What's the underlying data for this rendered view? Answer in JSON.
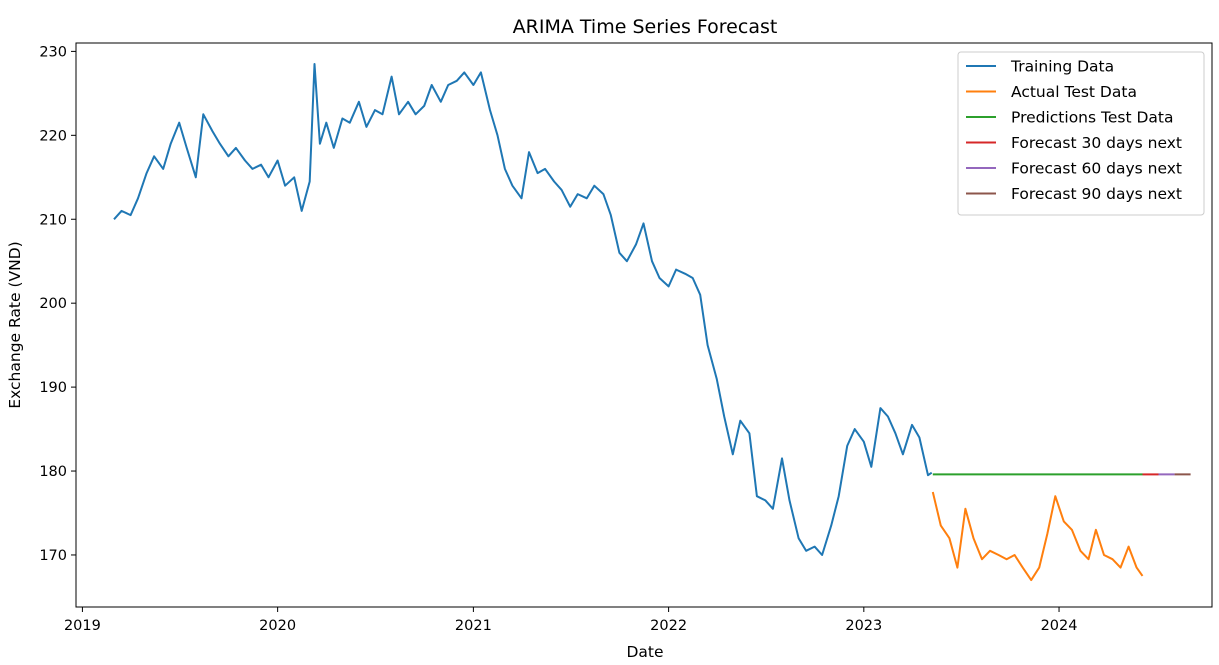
{
  "chart_data": {
    "type": "line",
    "title": "ARIMA Time Series Forecast",
    "xlabel": "Date",
    "ylabel": "Exchange Rate (VND)",
    "x_ticks": [
      "2019",
      "2020",
      "2021",
      "2022",
      "2023",
      "2024"
    ],
    "y_ticks": [
      170,
      180,
      190,
      200,
      210,
      220,
      230
    ],
    "xlim": [
      "2018-12-20",
      "2024-10-13"
    ],
    "ylim": [
      163.8,
      231.0
    ],
    "grid": false,
    "legend_position": "top-right",
    "series": [
      {
        "name": "Training Data",
        "color": "#1f77b4",
        "points": [
          [
            "2019-03-01",
            210.0
          ],
          [
            "2019-03-15",
            211.0
          ],
          [
            "2019-04-01",
            210.5
          ],
          [
            "2019-04-15",
            212.5
          ],
          [
            "2019-05-01",
            215.5
          ],
          [
            "2019-05-15",
            217.5
          ],
          [
            "2019-06-01",
            216.0
          ],
          [
            "2019-06-15",
            219.0
          ],
          [
            "2019-07-01",
            221.5
          ],
          [
            "2019-07-15",
            218.5
          ],
          [
            "2019-08-01",
            215.0
          ],
          [
            "2019-08-15",
            222.5
          ],
          [
            "2019-09-01",
            220.5
          ],
          [
            "2019-09-15",
            219.0
          ],
          [
            "2019-10-01",
            217.5
          ],
          [
            "2019-10-15",
            218.5
          ],
          [
            "2019-11-01",
            217.0
          ],
          [
            "2019-11-15",
            216.0
          ],
          [
            "2019-12-01",
            216.5
          ],
          [
            "2019-12-15",
            215.0
          ],
          [
            "2020-01-01",
            217.0
          ],
          [
            "2020-01-15",
            214.0
          ],
          [
            "2020-02-01",
            215.0
          ],
          [
            "2020-02-15",
            211.0
          ],
          [
            "2020-03-01",
            214.5
          ],
          [
            "2020-03-10",
            228.5
          ],
          [
            "2020-03-20",
            219.0
          ],
          [
            "2020-04-01",
            221.5
          ],
          [
            "2020-04-15",
            218.5
          ],
          [
            "2020-05-01",
            222.0
          ],
          [
            "2020-05-15",
            221.5
          ],
          [
            "2020-06-01",
            224.0
          ],
          [
            "2020-06-15",
            221.0
          ],
          [
            "2020-07-01",
            223.0
          ],
          [
            "2020-07-15",
            222.5
          ],
          [
            "2020-08-01",
            227.0
          ],
          [
            "2020-08-15",
            222.5
          ],
          [
            "2020-09-01",
            224.0
          ],
          [
            "2020-09-15",
            222.5
          ],
          [
            "2020-10-01",
            223.5
          ],
          [
            "2020-10-15",
            226.0
          ],
          [
            "2020-11-01",
            224.0
          ],
          [
            "2020-11-15",
            226.0
          ],
          [
            "2020-12-01",
            226.5
          ],
          [
            "2020-12-15",
            227.5
          ],
          [
            "2021-01-01",
            226.0
          ],
          [
            "2021-01-15",
            227.5
          ],
          [
            "2021-02-01",
            223.0
          ],
          [
            "2021-02-15",
            220.0
          ],
          [
            "2021-03-01",
            216.0
          ],
          [
            "2021-03-15",
            214.0
          ],
          [
            "2021-04-01",
            212.5
          ],
          [
            "2021-04-15",
            218.0
          ],
          [
            "2021-05-01",
            215.5
          ],
          [
            "2021-05-15",
            216.0
          ],
          [
            "2021-06-01",
            214.5
          ],
          [
            "2021-06-15",
            213.5
          ],
          [
            "2021-07-01",
            211.5
          ],
          [
            "2021-07-15",
            213.0
          ],
          [
            "2021-08-01",
            212.5
          ],
          [
            "2021-08-15",
            214.0
          ],
          [
            "2021-09-01",
            213.0
          ],
          [
            "2021-09-15",
            210.5
          ],
          [
            "2021-10-01",
            206.0
          ],
          [
            "2021-10-15",
            205.0
          ],
          [
            "2021-11-01",
            207.0
          ],
          [
            "2021-11-15",
            209.5
          ],
          [
            "2021-12-01",
            205.0
          ],
          [
            "2021-12-15",
            203.0
          ],
          [
            "2022-01-01",
            202.0
          ],
          [
            "2022-01-15",
            204.0
          ],
          [
            "2022-02-01",
            203.5
          ],
          [
            "2022-02-15",
            203.0
          ],
          [
            "2022-03-01",
            201.0
          ],
          [
            "2022-03-15",
            195.0
          ],
          [
            "2022-04-01",
            191.0
          ],
          [
            "2022-04-15",
            186.5
          ],
          [
            "2022-05-01",
            182.0
          ],
          [
            "2022-05-15",
            186.0
          ],
          [
            "2022-06-01",
            184.5
          ],
          [
            "2022-06-15",
            177.0
          ],
          [
            "2022-07-01",
            176.5
          ],
          [
            "2022-07-15",
            175.5
          ],
          [
            "2022-08-01",
            181.5
          ],
          [
            "2022-08-15",
            176.5
          ],
          [
            "2022-09-01",
            172.0
          ],
          [
            "2022-09-15",
            170.5
          ],
          [
            "2022-10-01",
            171.0
          ],
          [
            "2022-10-15",
            170.0
          ],
          [
            "2022-11-01",
            173.5
          ],
          [
            "2022-11-15",
            177.0
          ],
          [
            "2022-12-01",
            183.0
          ],
          [
            "2022-12-15",
            185.0
          ],
          [
            "2023-01-01",
            183.5
          ],
          [
            "2023-01-15",
            180.5
          ],
          [
            "2023-02-01",
            187.5
          ],
          [
            "2023-02-15",
            186.5
          ],
          [
            "2023-03-01",
            184.5
          ],
          [
            "2023-03-15",
            182.0
          ],
          [
            "2023-04-01",
            185.5
          ],
          [
            "2023-04-15",
            184.0
          ],
          [
            "2023-05-01",
            179.5
          ],
          [
            "2023-05-08",
            179.8
          ]
        ]
      },
      {
        "name": "Actual Test Data",
        "color": "#ff7f0e",
        "points": [
          [
            "2023-05-10",
            177.5
          ],
          [
            "2023-05-25",
            173.5
          ],
          [
            "2023-06-10",
            172.0
          ],
          [
            "2023-06-25",
            168.5
          ],
          [
            "2023-07-10",
            175.5
          ],
          [
            "2023-07-25",
            172.0
          ],
          [
            "2023-08-10",
            169.5
          ],
          [
            "2023-08-25",
            170.5
          ],
          [
            "2023-09-10",
            170.0
          ],
          [
            "2023-09-25",
            169.5
          ],
          [
            "2023-10-10",
            170.0
          ],
          [
            "2023-10-25",
            168.5
          ],
          [
            "2023-11-10",
            167.0
          ],
          [
            "2023-11-25",
            168.5
          ],
          [
            "2023-12-10",
            172.5
          ],
          [
            "2023-12-25",
            177.0
          ],
          [
            "2024-01-10",
            174.0
          ],
          [
            "2024-01-25",
            173.0
          ],
          [
            "2024-02-10",
            170.5
          ],
          [
            "2024-02-25",
            169.5
          ],
          [
            "2024-03-10",
            173.0
          ],
          [
            "2024-03-25",
            170.0
          ],
          [
            "2024-04-10",
            169.5
          ],
          [
            "2024-04-25",
            168.5
          ],
          [
            "2024-05-10",
            171.0
          ],
          [
            "2024-05-25",
            168.5
          ],
          [
            "2024-06-05",
            167.5
          ]
        ]
      },
      {
        "name": "Predictions Test Data",
        "color": "#2ca02c",
        "points": [
          [
            "2023-05-10",
            179.6
          ],
          [
            "2024-06-05",
            179.6
          ]
        ]
      },
      {
        "name": "Forecast 30 days next",
        "color": "#d62728",
        "points": [
          [
            "2024-06-05",
            179.6
          ],
          [
            "2024-07-05",
            179.6
          ]
        ]
      },
      {
        "name": "Forecast 60 days next",
        "color": "#9467bd",
        "points": [
          [
            "2024-07-05",
            179.6
          ],
          [
            "2024-08-04",
            179.6
          ]
        ]
      },
      {
        "name": "Forecast 90 days next",
        "color": "#8c564b",
        "points": [
          [
            "2024-08-04",
            179.6
          ],
          [
            "2024-09-03",
            179.6
          ]
        ]
      }
    ]
  }
}
